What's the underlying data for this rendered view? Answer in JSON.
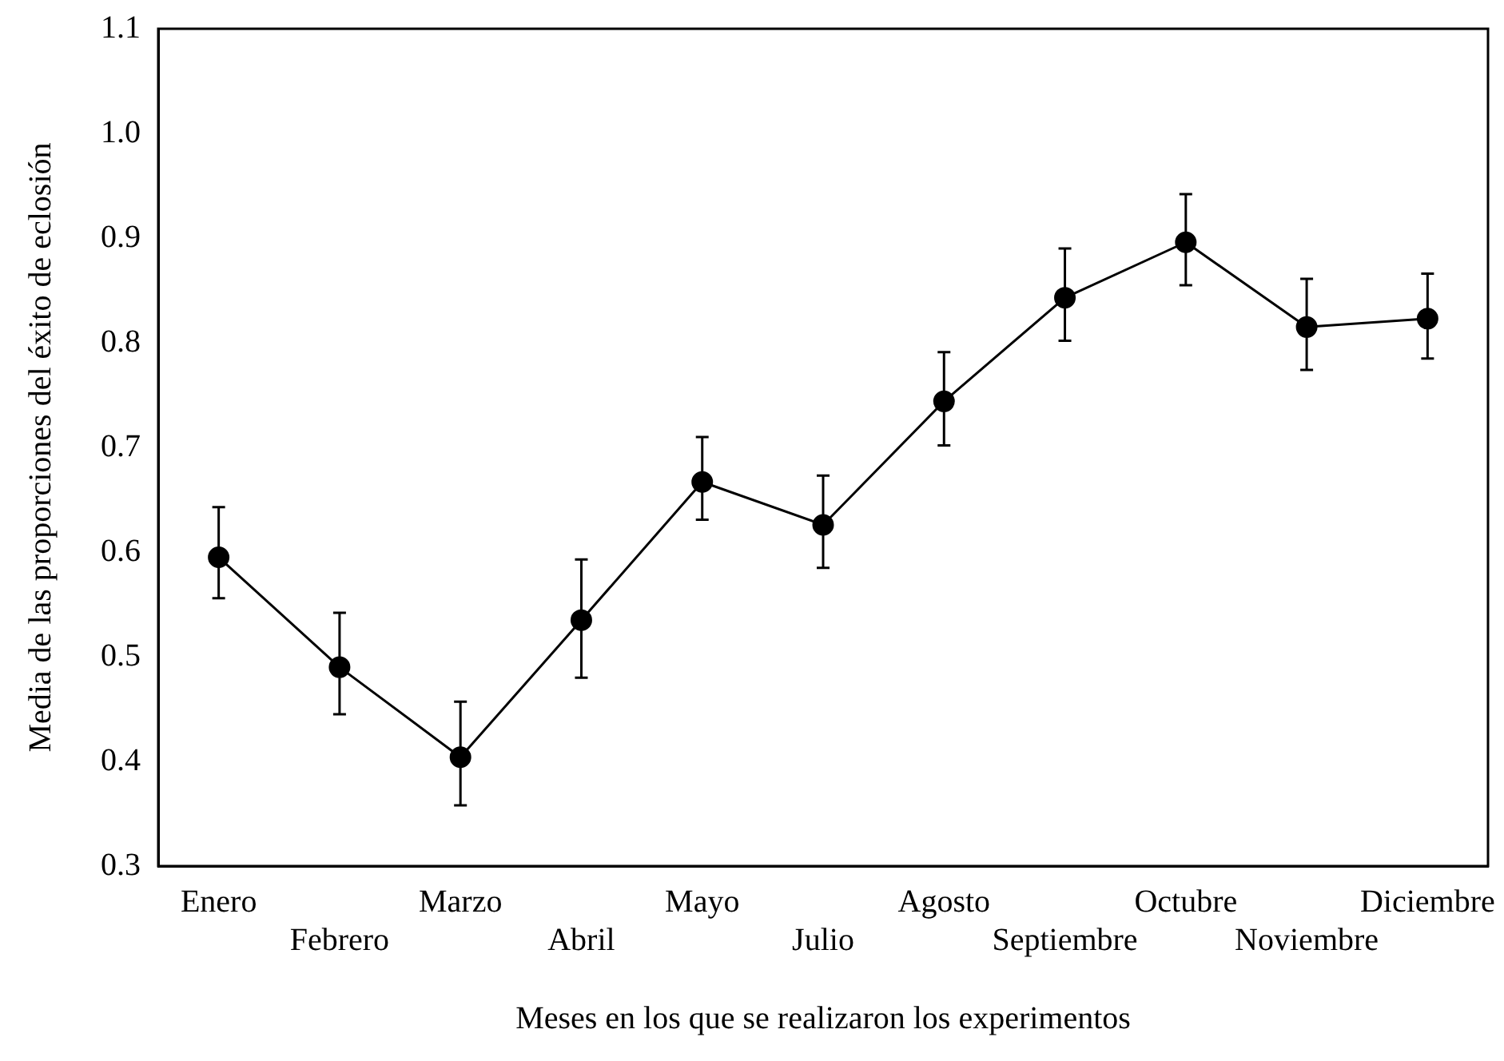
{
  "chart_data": {
    "type": "line",
    "xlabel": "Meses en los que se realizaron los experimentos",
    "ylabel": "Media de las proporciones del éxito de eclosión",
    "categories": [
      "Enero",
      "Febrero",
      "Marzo",
      "Abril",
      "Mayo",
      "Julio",
      "Agosto",
      "Septiembre",
      "Octubre",
      "Noviembre",
      "Diciembre"
    ],
    "series": [
      {
        "color": "#000000",
        "values": [
          0.595,
          0.49,
          0.404,
          0.535,
          0.667,
          0.626,
          0.744,
          0.843,
          0.896,
          0.815,
          0.823
        ],
        "errors": [
          [
            0.556,
            0.643
          ],
          [
            0.445,
            0.542
          ],
          [
            0.358,
            0.457
          ],
          [
            0.48,
            0.593
          ],
          [
            0.631,
            0.71
          ],
          [
            0.585,
            0.673
          ],
          [
            0.702,
            0.791
          ],
          [
            0.802,
            0.89
          ],
          [
            0.855,
            0.942
          ],
          [
            0.774,
            0.861
          ],
          [
            0.785,
            0.866
          ]
        ]
      }
    ],
    "ylim": [
      0.3,
      1.1
    ],
    "yticks": [
      {
        "value": 0.3,
        "label": "0.3"
      },
      {
        "value": 0.4,
        "label": "0.4"
      },
      {
        "value": 0.5,
        "label": "0.5"
      },
      {
        "value": 0.6,
        "label": "0.6"
      },
      {
        "value": 0.7,
        "label": "0.7"
      },
      {
        "value": 0.8,
        "label": "0.8"
      },
      {
        "value": 0.9,
        "label": "0.9"
      },
      {
        "value": 1.0,
        "label": "1.0"
      },
      {
        "value": 1.1,
        "label": "1.1"
      }
    ],
    "grid": false,
    "legend": false,
    "marker": "circle",
    "line_style": "solid"
  }
}
